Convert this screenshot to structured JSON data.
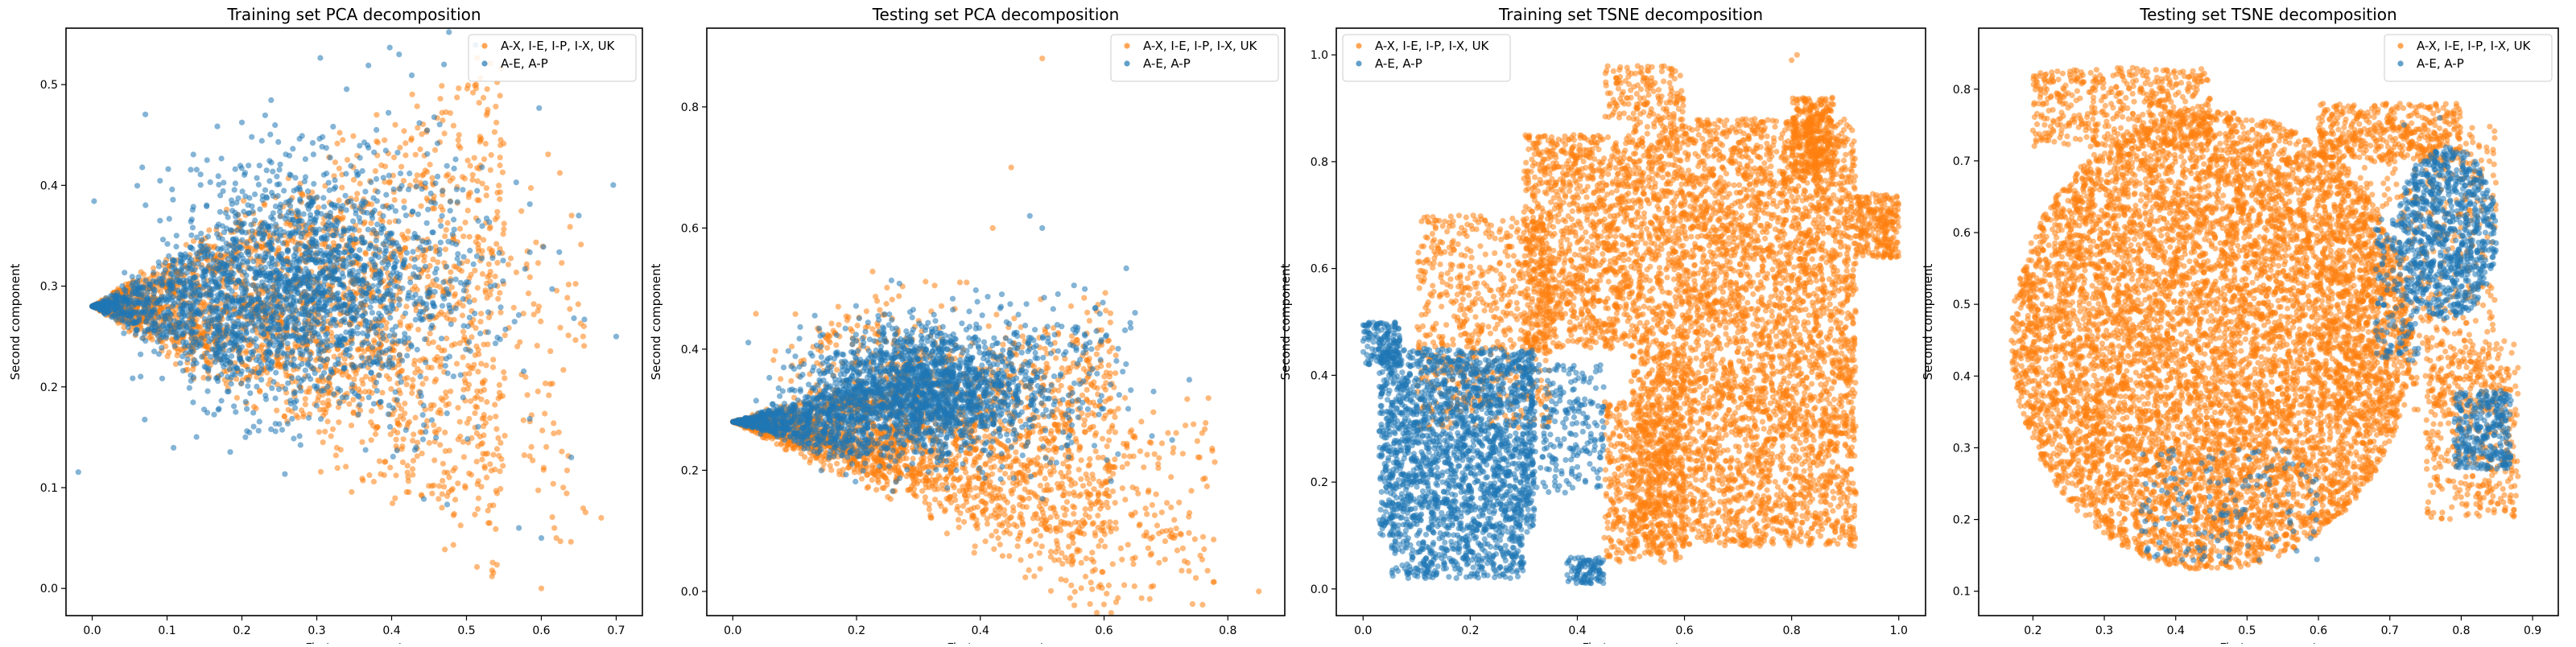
{
  "colors": {
    "orange": "#ff7f0e",
    "blue": "#1f77b4"
  },
  "chart_data": [
    {
      "type": "scatter",
      "title": "Training set PCA decomposition",
      "xlabel": "First component",
      "ylabel": "Second component",
      "xlim": [
        -0.035,
        0.735
      ],
      "ylim": [
        -0.027,
        0.556
      ],
      "xticks": [
        "0.0",
        "0.1",
        "0.2",
        "0.3",
        "0.4",
        "0.5",
        "0.6",
        "0.7"
      ],
      "yticks": [
        "0.0",
        "0.1",
        "0.2",
        "0.3",
        "0.4",
        "0.5"
      ],
      "legend_position": "top-right",
      "series": [
        {
          "name": "A-X, I-E, I-P, I-X, UK",
          "color": "#ff7f0e",
          "count": 2600,
          "clusters": [
            {
              "shape": "wedge",
              "n": 2300,
              "apex": [
                0.0,
                0.28
              ],
              "xmax": 0.55,
              "spread": 0.55,
              "power": 1.1
            },
            {
              "shape": "wedge",
              "n": 300,
              "apex": [
                0.2,
                0.28
              ],
              "xmax": 0.66,
              "spread": 0.5,
              "power": 1.1,
              "skew": -0.12
            }
          ],
          "outliers": [
            [
              0.6,
              0.0
            ],
            [
              0.68,
              0.07
            ],
            [
              0.62,
              0.05
            ],
            [
              0.49,
              0.45
            ],
            [
              0.38,
              0.47
            ]
          ]
        },
        {
          "name": "A-E, A-P",
          "color": "#1f77b4",
          "count": 2600,
          "clusters": [
            {
              "shape": "wedge",
              "n": 700,
              "apex": [
                0.0,
                0.28
              ],
              "xmax": 0.2,
              "spread": 0.5,
              "power": 1.1
            },
            {
              "shape": "gauss",
              "n": 1700,
              "center": [
                0.28,
                0.3
              ],
              "sd": [
                0.09,
                0.06
              ]
            },
            {
              "shape": "gauss",
              "n": 200,
              "center": [
                0.45,
                0.3
              ],
              "sd": [
                0.08,
                0.08
              ]
            }
          ],
          "outliers": [
            [
              0.7,
              0.25
            ],
            [
              0.65,
              0.37
            ],
            [
              0.41,
              0.53
            ],
            [
              0.47,
              0.52
            ],
            [
              0.6,
              0.05
            ],
            [
              0.57,
              0.06
            ],
            [
              0.64,
              0.13
            ]
          ]
        }
      ]
    },
    {
      "type": "scatter",
      "title": "Testing set PCA decomposition",
      "xlabel": "First component",
      "ylabel": "Second component",
      "xlim": [
        -0.042,
        0.892
      ],
      "ylim": [
        -0.04,
        0.93
      ],
      "xticks": [
        "0.0",
        "0.2",
        "0.4",
        "0.6",
        "0.8"
      ],
      "yticks": [
        "0.0",
        "0.2",
        "0.4",
        "0.6",
        "0.8"
      ],
      "legend_position": "top-right",
      "series": [
        {
          "name": "A-X, I-E, I-P, I-X, UK",
          "color": "#ff7f0e",
          "count": 2800,
          "clusters": [
            {
              "shape": "wedge",
              "n": 2000,
              "apex": [
                0.0,
                0.28
              ],
              "xmax": 0.62,
              "spread": 0.5,
              "power": 1.05,
              "skew": -0.08
            },
            {
              "shape": "wedge",
              "n": 600,
              "apex": [
                0.1,
                0.26
              ],
              "xmax": 0.78,
              "spread": 0.35,
              "power": 1.2,
              "skew": -0.2
            },
            {
              "shape": "gauss",
              "n": 200,
              "center": [
                0.22,
                0.4
              ],
              "sd": [
                0.08,
                0.05
              ]
            }
          ],
          "outliers": [
            [
              0.5,
              0.88
            ],
            [
              0.45,
              0.7
            ],
            [
              0.42,
              0.6
            ],
            [
              0.85,
              0.0
            ],
            [
              0.73,
              0.05
            ],
            [
              0.76,
              0.09
            ]
          ]
        },
        {
          "name": "A-E, A-P",
          "color": "#1f77b4",
          "count": 2700,
          "clusters": [
            {
              "shape": "wedge",
              "n": 700,
              "apex": [
                0.0,
                0.28
              ],
              "xmax": 0.22,
              "spread": 0.4,
              "power": 1.1
            },
            {
              "shape": "gauss",
              "n": 1800,
              "center": [
                0.3,
                0.33
              ],
              "sd": [
                0.09,
                0.05
              ]
            },
            {
              "shape": "gauss",
              "n": 200,
              "center": [
                0.5,
                0.36
              ],
              "sd": [
                0.08,
                0.07
              ]
            }
          ],
          "outliers": [
            [
              0.48,
              0.62
            ],
            [
              0.5,
              0.6
            ],
            [
              0.68,
              0.33
            ],
            [
              0.71,
              0.25
            ],
            [
              0.65,
              0.46
            ]
          ]
        }
      ]
    },
    {
      "type": "scatter",
      "title": "Training set TSNE decomposition",
      "xlabel": "First component",
      "ylabel": "Second component",
      "xlim": [
        -0.05,
        1.05
      ],
      "ylim": [
        -0.05,
        1.05
      ],
      "xticks": [
        "0.0",
        "0.2",
        "0.4",
        "0.6",
        "0.8",
        "1.0"
      ],
      "yticks": [
        "0.0",
        "0.2",
        "0.4",
        "0.6",
        "0.8",
        "1.0"
      ],
      "legend_position": "top-left",
      "series": [
        {
          "name": "A-X, I-E, I-P, I-X, UK",
          "color": "#ff7f0e",
          "count": 7500,
          "clusters": [
            {
              "shape": "box",
              "n": 4500,
              "x": [
                0.5,
                0.92
              ],
              "y": [
                0.08,
                0.88
              ]
            },
            {
              "shape": "box",
              "n": 1100,
              "x": [
                0.3,
                0.5
              ],
              "y": [
                0.45,
                0.85
              ]
            },
            {
              "shape": "box",
              "n": 500,
              "x": [
                0.45,
                0.6
              ],
              "y": [
                0.05,
                0.35
              ]
            },
            {
              "shape": "box",
              "n": 700,
              "x": [
                0.1,
                0.35
              ],
              "y": [
                0.3,
                0.7
              ]
            },
            {
              "shape": "box",
              "n": 300,
              "x": [
                0.8,
                0.88
              ],
              "y": [
                0.78,
                0.92
              ]
            },
            {
              "shape": "box",
              "n": 250,
              "x": [
                0.92,
                1.0
              ],
              "y": [
                0.62,
                0.74
              ]
            },
            {
              "shape": "box",
              "n": 150,
              "x": [
                0.45,
                0.6
              ],
              "y": [
                0.88,
                0.98
              ]
            }
          ],
          "outliers": [
            [
              0.8,
              0.99
            ],
            [
              0.81,
              1.0
            ]
          ]
        },
        {
          "name": "A-E, A-P",
          "color": "#1f77b4",
          "count": 2700,
          "clusters": [
            {
              "shape": "box",
              "n": 1900,
              "x": [
                0.03,
                0.32
              ],
              "y": [
                0.1,
                0.45
              ]
            },
            {
              "shape": "box",
              "n": 300,
              "x": [
                0.05,
                0.3
              ],
              "y": [
                0.02,
                0.1
              ]
            },
            {
              "shape": "box",
              "n": 250,
              "x": [
                0.3,
                0.45
              ],
              "y": [
                0.18,
                0.42
              ]
            },
            {
              "shape": "box",
              "n": 150,
              "x": [
                0.0,
                0.07
              ],
              "y": [
                0.42,
                0.5
              ]
            },
            {
              "shape": "box",
              "n": 100,
              "x": [
                0.38,
                0.45
              ],
              "y": [
                0.01,
                0.06
              ]
            }
          ],
          "outliers": []
        }
      ]
    },
    {
      "type": "scatter",
      "title": "Testing set TSNE decomposition",
      "xlabel": "First component",
      "ylabel": "Second component",
      "xlim": [
        0.124,
        0.936
      ],
      "ylim": [
        0.066,
        0.885
      ],
      "xticks": [
        "0.2",
        "0.3",
        "0.4",
        "0.5",
        "0.6",
        "0.7",
        "0.8",
        "0.9"
      ],
      "yticks": [
        "0.1",
        "0.2",
        "0.3",
        "0.4",
        "0.5",
        "0.6",
        "0.7",
        "0.8"
      ],
      "legend_position": "top-right",
      "series": [
        {
          "name": "A-X, I-E, I-P, I-X, UK",
          "color": "#ff7f0e",
          "count": 10000,
          "clusters": [
            {
              "shape": "ellipse",
              "n": 8000,
              "center": [
                0.45,
                0.45
              ],
              "r": [
                0.28,
                0.32
              ]
            },
            {
              "shape": "box",
              "n": 700,
              "x": [
                0.6,
                0.85
              ],
              "y": [
                0.35,
                0.75
              ]
            },
            {
              "shape": "box",
              "n": 500,
              "x": [
                0.2,
                0.45
              ],
              "y": [
                0.72,
                0.83
              ]
            },
            {
              "shape": "box",
              "n": 400,
              "x": [
                0.75,
                0.88
              ],
              "y": [
                0.2,
                0.45
              ]
            },
            {
              "shape": "box",
              "n": 400,
              "x": [
                0.6,
                0.8
              ],
              "y": [
                0.7,
                0.78
              ]
            }
          ],
          "outliers": []
        },
        {
          "name": "A-E, A-P",
          "color": "#1f77b4",
          "count": 1400,
          "clusters": [
            {
              "shape": "ellipse",
              "n": 800,
              "center": [
                0.78,
                0.6
              ],
              "r": [
                0.07,
                0.12
              ]
            },
            {
              "shape": "box",
              "n": 300,
              "x": [
                0.79,
                0.87
              ],
              "y": [
                0.27,
                0.38
              ]
            },
            {
              "shape": "box",
              "n": 150,
              "x": [
                0.68,
                0.74
              ],
              "y": [
                0.42,
                0.62
              ]
            },
            {
              "shape": "box",
              "n": 150,
              "x": [
                0.35,
                0.6
              ],
              "y": [
                0.14,
                0.3
              ]
            }
          ],
          "outliers": [
            [
              0.77,
              0.76
            ],
            [
              0.72,
              0.75
            ],
            [
              0.83,
              0.64
            ]
          ]
        }
      ]
    }
  ]
}
